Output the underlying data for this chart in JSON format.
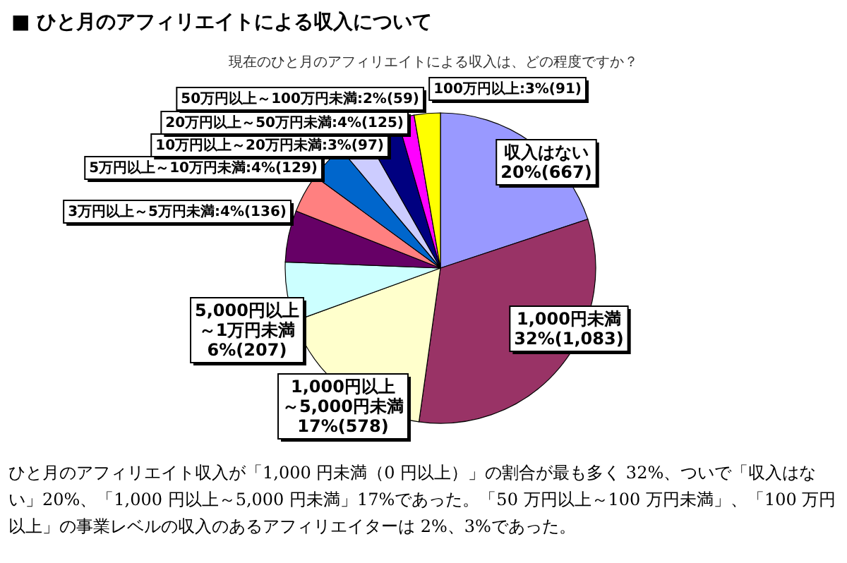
{
  "chart_data": {
    "type": "pie",
    "title": "■ ひと月のアフィリエイトによる収入について",
    "subtitle": "現在のひと月のアフィリエイトによる収入は、どの程度ですか？",
    "categories": [
      "収入はない",
      "1,000円未満",
      "1,000円以上～5,000円未満",
      "5,000円以上～1万円未満",
      null,
      "3万円以上～5万円未満",
      "5万円以上～10万円未満",
      "10万円以上～20万円未満",
      "20万円以上～50万円未満",
      "50万円以上～100万円未満",
      "100万円以上"
    ],
    "values": [
      667,
      1083,
      578,
      207,
      180,
      136,
      129,
      97,
      125,
      59,
      91
    ],
    "colors": [
      "#9999ff",
      "#993366",
      "#ffffcc",
      "#ccffff",
      "#660066",
      "#ff8080",
      "#0066cc",
      "#ccccff",
      "#000080",
      "#ff00ff",
      "#ffff00"
    ],
    "value_labels": [
      "20%(667)",
      "32%(1,083)",
      "17%(578)",
      "6%(207)",
      null,
      "4%(136)",
      "4%(129)",
      "3%(97)",
      "4%(125)",
      "2%(59)",
      "3%(91)"
    ],
    "annotations": [
      "ひと月のアフィリエイト収入が「1,000 円未満（0 円以上）」の割合が最も多く 32%、ついで「収入はない」20%、「1,000 円以上～5,000 円未満」17%であった。「50 万円以上～100 万円未満」、「100 万円以上」の事業レベルの収入のあるアフィリエイターは 2%、3%であった。"
    ]
  }
}
